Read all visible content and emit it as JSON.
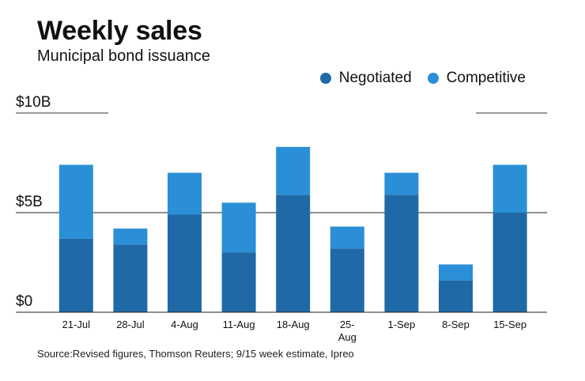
{
  "title": "Weekly sales",
  "subtitle": "Municipal bond issuance",
  "source": "Source:Revised figures, Thomson Reuters; 9/15 week estimate, Ipreo",
  "legend": [
    {
      "name": "Negotiated",
      "color": "#1f6aa6"
    },
    {
      "name": "Competitive",
      "color": "#2a8fd6"
    }
  ],
  "chart_data": {
    "type": "bar",
    "stacked": true,
    "title": "Weekly sales",
    "subtitle": "Municipal bond issuance",
    "categories": [
      "21-Jul",
      "28-Jul",
      "4-Aug",
      "11-Aug",
      "18-Aug",
      "25-Aug",
      "1-Sep",
      "8-Sep",
      "15-Sep"
    ],
    "category_labels": [
      [
        "21-Jul"
      ],
      [
        "28-Jul"
      ],
      [
        "4-Aug"
      ],
      [
        "11-Aug"
      ],
      [
        "18-Aug"
      ],
      [
        "25-",
        "Aug"
      ],
      [
        "1-Sep"
      ],
      [
        "8-Sep"
      ],
      [
        "15-Sep"
      ]
    ],
    "series": [
      {
        "name": "Negotiated",
        "color": "#1f6aa6",
        "values": [
          3.7,
          3.4,
          4.9,
          3.0,
          5.9,
          3.2,
          5.9,
          1.6,
          5.0
        ]
      },
      {
        "name": "Competitive",
        "color": "#2a8fd6",
        "values": [
          3.7,
          0.8,
          2.1,
          2.5,
          2.4,
          1.1,
          1.1,
          0.8,
          2.4
        ]
      }
    ],
    "ylim": [
      0,
      10
    ],
    "yticks": [
      0,
      5,
      10
    ],
    "ytick_labels": [
      "$0",
      "$5B",
      "$10B"
    ],
    "xlabel": "",
    "ylabel": "",
    "legend_position": "top-right",
    "grid": true
  }
}
